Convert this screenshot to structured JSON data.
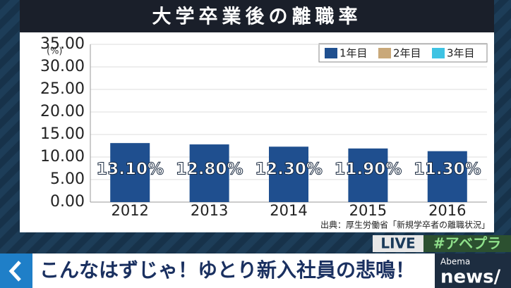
{
  "chart_data": {
    "type": "bar",
    "title": "大学卒業後の離職率",
    "y_unit": "(%)",
    "categories": [
      "2012",
      "2013",
      "2014",
      "2015",
      "2016"
    ],
    "series": [
      {
        "name": "1年目",
        "color": "#1f4f8f",
        "values": [
          13.1,
          12.8,
          12.3,
          11.9,
          11.3
        ],
        "value_labels": [
          "13.10%",
          "12.80%",
          "12.30%",
          "11.90%",
          "11.30%"
        ]
      },
      {
        "name": "2年目",
        "color": "#c9a879",
        "values": [
          null,
          null,
          null,
          null,
          null
        ]
      },
      {
        "name": "3年目",
        "color": "#3ec3e3",
        "values": [
          null,
          null,
          null,
          null,
          null
        ]
      }
    ],
    "ylim": [
      0,
      35
    ],
    "yticks": [
      {
        "value": 0,
        "label": "0.00"
      },
      {
        "value": 5,
        "label": "5.00"
      },
      {
        "value": 10,
        "label": "10.00"
      },
      {
        "value": 15,
        "label": "15.00"
      },
      {
        "value": 20,
        "label": "20.00"
      },
      {
        "value": 25,
        "label": "25.00"
      },
      {
        "value": 30,
        "label": "30.00"
      },
      {
        "value": 35,
        "label": "35.00"
      }
    ],
    "grid": true,
    "legend": "top-right",
    "source": "出典：厚生労働省「新規学卒者の離職状況」"
  },
  "ticker": {
    "live": "LIVE",
    "hashtag": "#アベプラ",
    "headline": "こんなはずじゃ！ゆとり新入社員の悲鳴！",
    "brand_small": "Abema",
    "brand": "news/"
  }
}
